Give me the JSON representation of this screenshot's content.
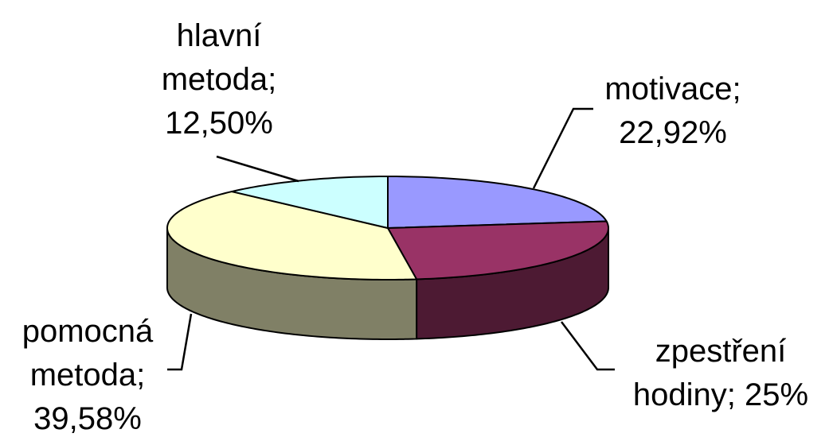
{
  "chart_data": {
    "type": "pie",
    "style": "3d",
    "categories": [
      "motivace",
      "zpestření hodiny",
      "pomocná metoda",
      "hlavní metoda"
    ],
    "values": [
      22.92,
      25,
      39.58,
      12.5
    ],
    "value_labels": [
      "22,92%",
      "25%",
      "39,58%",
      "12,50%"
    ],
    "label_separator": ";",
    "colors": [
      "#9999ff",
      "#993366",
      "#ffffcc",
      "#ccffff"
    ]
  }
}
